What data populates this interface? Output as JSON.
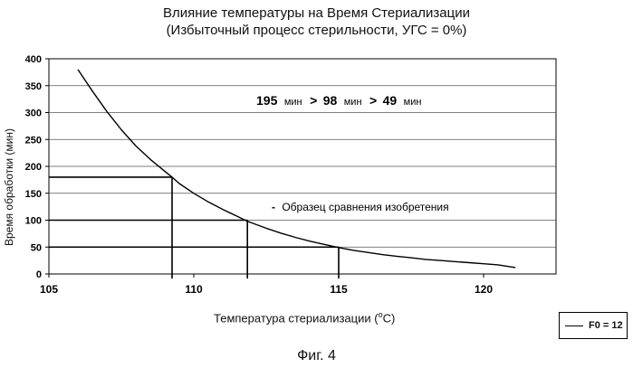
{
  "chart_data": {
    "type": "line",
    "title": "Влияние температуры на Время Стериализации",
    "subtitle": "(Избыточный процесс стерильности, УГС = 0%)",
    "xlabel_prefix": "Температура стериализации (",
    "xlabel_sup": "o",
    "xlabel_suffix": "C)",
    "ylabel": "Время обработки (мин)",
    "xlim": [
      105,
      122.5
    ],
    "ylim": [
      0,
      400
    ],
    "x_ticks": [
      105,
      110,
      115,
      120
    ],
    "y_ticks": [
      0,
      50,
      100,
      150,
      200,
      250,
      300,
      350,
      400
    ],
    "grid": true,
    "legend_position": "bottom-right",
    "series": [
      {
        "name": "F0 = 12",
        "x": [
          106,
          106.5,
          107,
          107.5,
          108,
          108.5,
          109,
          109.25,
          109.5,
          110,
          110.5,
          111,
          111.5,
          111.85,
          112,
          112.5,
          113,
          113.5,
          114,
          114.5,
          115,
          115.5,
          116,
          116.5,
          117,
          117.5,
          118,
          118.5,
          119,
          119.5,
          120,
          120.5,
          121.1
        ],
        "y": [
          380,
          340,
          302,
          268,
          238,
          213,
          191,
          180,
          168,
          150,
          134,
          120,
          107,
          98,
          95,
          85,
          76,
          68,
          61,
          55,
          49,
          44,
          40,
          36,
          33,
          30,
          27,
          25,
          23,
          21,
          19,
          17,
          12
        ]
      }
    ],
    "reference_lines": [
      {
        "x": 109.25,
        "y": 180
      },
      {
        "x": 111.85,
        "y": 100
      },
      {
        "x": 115,
        "y": 50
      }
    ],
    "annotations": {
      "times": [
        {
          "value": "195",
          "unit": "мин"
        },
        {
          "value": "98",
          "unit": "мин"
        },
        {
          "value": "49",
          "unit": "мин"
        }
      ],
      "separator": ">",
      "note_dash": "-",
      "note": "Образец сравнения изобретения"
    }
  },
  "caption": "Фиг. 4"
}
